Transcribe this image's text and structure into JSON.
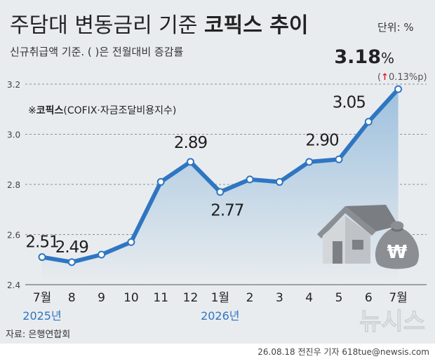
{
  "header": {
    "title_plain": "주담대 변동금리 기준 ",
    "title_bold": "코픽스 추이",
    "unit": "단위: %",
    "subtitle": "신규취급액 기준. ( )은 전월대비 증감률"
  },
  "latest": {
    "value": "3.18",
    "unit": "%",
    "change_arrow": "↑",
    "change": "0.13%p"
  },
  "legend": {
    "mark": "※",
    "name_bold": "코픽스",
    "name_detail": "(COFIX·자금조달비용지수)"
  },
  "footer": {
    "source": "자료: 은행연합회",
    "credit": "26.08.18 전진우 기자 618tue@newsis.com",
    "logo": "뉴시스"
  },
  "colors": {
    "background": "#e9ecef",
    "line": "#2f76c2",
    "area_top": "#9ec1de",
    "area_bottom": "#e9ecef",
    "year_label": "#2f76c2",
    "arrow": "#e0202a"
  },
  "icons": [
    "house-icon",
    "won-money-bag-icon"
  ],
  "chart_data": {
    "type": "area",
    "categories": [
      "7월",
      "8",
      "9",
      "10",
      "11",
      "12",
      "1월",
      "2",
      "3",
      "4",
      "5",
      "6",
      "7월"
    ],
    "year_labels": [
      {
        "index": 0,
        "label": "2025년"
      },
      {
        "index": 6,
        "label": "2026년"
      }
    ],
    "series": [
      {
        "values": [
          2.51,
          2.49,
          2.52,
          2.57,
          2.81,
          2.89,
          2.77,
          2.82,
          2.81,
          2.89,
          2.9,
          3.05,
          3.18
        ]
      }
    ],
    "labeled_points": [
      {
        "index": 0,
        "label": "2.51"
      },
      {
        "index": 1,
        "label": "2.49"
      },
      {
        "index": 5,
        "label": "2.89"
      },
      {
        "index": 6,
        "label": "2.77"
      },
      {
        "index": 10,
        "label": "2.90"
      },
      {
        "index": 11,
        "label": "3.05"
      },
      {
        "index": 12,
        "label": "3.18"
      }
    ],
    "yticks": [
      "3.2",
      "3.0",
      "2.8",
      "2.6",
      "2.4"
    ],
    "ylim": [
      2.4,
      3.2
    ],
    "grid": true
  }
}
